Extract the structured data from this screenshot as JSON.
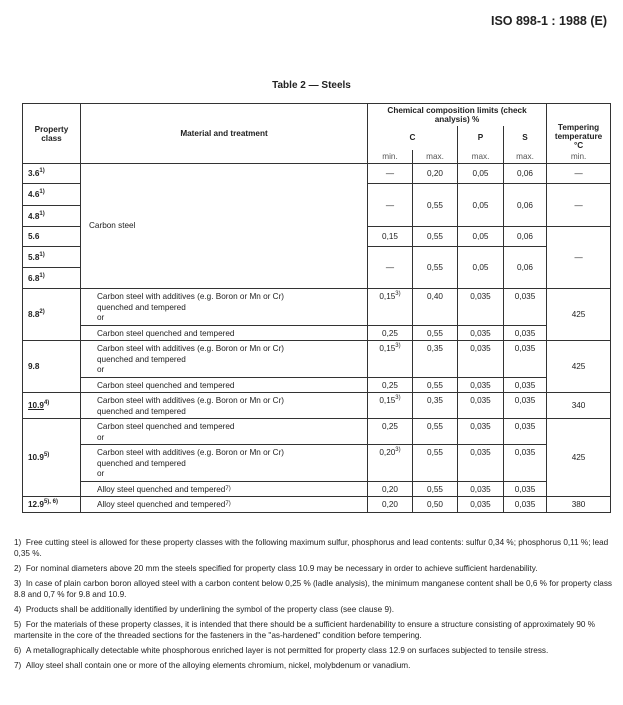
{
  "header_ref": "ISO 898-1 : 1988 (E)",
  "table_title": "Table 2 — Steels",
  "cols": {
    "property_class": "Property class",
    "material": "Material and treatment",
    "chem": "Chemical composition limits (check analysis) %",
    "c": "C",
    "p": "P",
    "s": "S",
    "min": "min.",
    "max": "max.",
    "tempering": "Tempering temperature °C",
    "temper_min": "min."
  },
  "dash": "—",
  "rows": [
    {
      "cls": "3.6",
      "sup": "1)",
      "cmin": "—",
      "cmax": "0,20",
      "p": "0,05",
      "s": "0,06",
      "t": "—"
    },
    {
      "cls": "4.6",
      "sup": "1)",
      "cmin": "—",
      "cmax": "0,55",
      "p": "0,05",
      "s": "0,06",
      "t": "—"
    },
    {
      "cls": "4.8",
      "sup": "1)"
    },
    {
      "cls": "5.6",
      "sup": "",
      "cmin": "0,15",
      "cmax": "0,55",
      "p": "0,05",
      "s": "0,06",
      "t": "—"
    },
    {
      "cls": "5.8",
      "sup": "1)",
      "cmin": "—",
      "cmax": "0,55",
      "p": "0,05",
      "s": "0,06"
    },
    {
      "cls": "6.8",
      "sup": "1)"
    }
  ],
  "carbon_steel": "Carbon steel",
  "groups": [
    {
      "cls": "8.8",
      "sup": "2)",
      "t": "425",
      "subs": [
        {
          "mat": "Carbon steel with additives (e.g. Boron or Mn or Cr) quenched and tempered",
          "or": "or",
          "cmin": "0,15",
          "cmin_sup": "3)",
          "cmax": "0,40",
          "p": "0,035",
          "s": "0,035"
        },
        {
          "mat": "Carbon steel quenched and tempered",
          "cmin": "0,25",
          "cmax": "0,55",
          "p": "0,035",
          "s": "0,035"
        }
      ]
    },
    {
      "cls": "9.8",
      "sup": "",
      "t": "425",
      "subs": [
        {
          "mat": "Carbon steel with additives (e.g. Boron or Mn or Cr) quenched and tempered",
          "or": "or",
          "cmin": "0,15",
          "cmin_sup": "3)",
          "cmax": "0,35",
          "p": "0,035",
          "s": "0,035"
        },
        {
          "mat": "Carbon steel quenched and tempered",
          "cmin": "0,25",
          "cmax": "0,55",
          "p": "0,035",
          "s": "0,035"
        }
      ]
    },
    {
      "cls": "10.9",
      "sup": "4)",
      "t": "340",
      "subs": [
        {
          "mat": "Carbon steel with additives (e.g. Boron or Mn or Cr) quenched and tempered",
          "cmin": "0,15",
          "cmin_sup": "3)",
          "cmax": "0,35",
          "p": "0,035",
          "s": "0,035"
        }
      ]
    },
    {
      "cls": "10.9",
      "sup": "5)",
      "t": "425",
      "subs": [
        {
          "mat": "Carbon steel quenched and tempered",
          "or": "or",
          "cmin": "0,25",
          "cmax": "0,55",
          "p": "0,035",
          "s": "0,035"
        },
        {
          "mat": "Carbon steel with additives (e.g. Boron or Mn or Cr) quenched and tempered",
          "or": "or",
          "cmin": "0,20",
          "cmin_sup": "3)",
          "cmax": "0,55",
          "p": "0,035",
          "s": "0,035"
        },
        {
          "mat": "Alloy steel quenched and tempered",
          "mat_sup": "7)",
          "cmin": "0,20",
          "cmax": "0,55",
          "p": "0,035",
          "s": "0,035"
        }
      ]
    },
    {
      "cls": "12.9",
      "sup": "5), 6)",
      "t": "380",
      "subs": [
        {
          "mat": "Alloy steel quenched and tempered",
          "mat_sup": "7)",
          "cmin": "0,20",
          "cmax": "0,50",
          "p": "0,035",
          "s": "0,035"
        }
      ]
    }
  ],
  "notes": [
    {
      "n": "1)",
      "text": "Free cutting steel is allowed for these property classes with the following maximum sulfur, phosphorus and lead contents: sulfur 0,34 %; phosphorus 0,11 %; lead 0,35 %."
    },
    {
      "n": "2)",
      "text": "For nominal diameters above 20 mm the steels specified for property class 10.9 may be necessary in order to achieve sufficient hardenability."
    },
    {
      "n": "3)",
      "text": "In case of plain carbon boron alloyed steel with a carbon content below 0,25 % (ladle analysis), the minimum manganese content shall be 0,6 % for property class 8.8 and 0,7 % for 9.8 and 10.9."
    },
    {
      "n": "4)",
      "text": "Products shall be additionally identified by underlining the symbol of the property class (see clause 9)."
    },
    {
      "n": "5)",
      "text": "For the materials of these property classes, it is intended that there should be a sufficient hardenability to ensure a structure consisting of approximately 90 % martensite in the core of the threaded sections for the fasteners in the \"as-hardened\" condition before tempering."
    },
    {
      "n": "6)",
      "text": "A metallographically detectable white phosphorous enriched layer is not permitted for property class 12.9 on surfaces subjected to tensile stress."
    },
    {
      "n": "7)",
      "text": "Alloy steel shall contain one or more of the alloying elements chromium, nickel, molybdenum or vanadium."
    }
  ]
}
